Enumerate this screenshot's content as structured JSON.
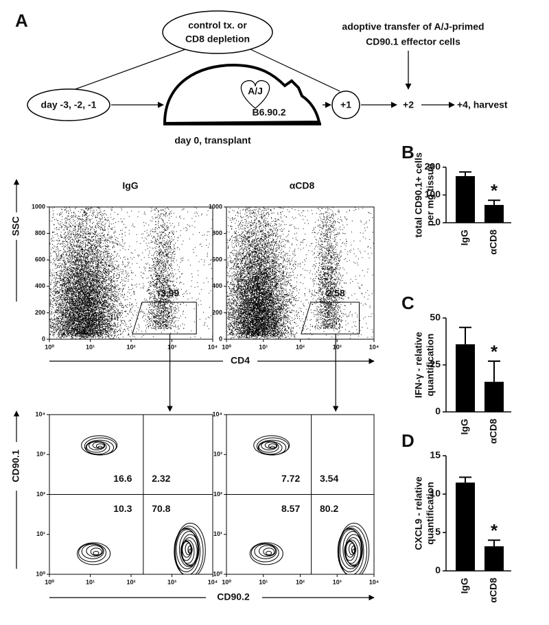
{
  "panel_a": {
    "label": "A",
    "depletion": [
      "control tx. or",
      "CD8 depletion"
    ],
    "transfer": [
      "adoptive transfer of A/J-primed",
      "CD90.1 effector cells"
    ],
    "pretreatment": "day -3, -2, -1",
    "donor": "A/J",
    "recipient": "B6.90.2",
    "transplant": "day 0, transplant",
    "steps": [
      "+1",
      "+2",
      "+4, harvest"
    ]
  },
  "flow": {
    "groups": [
      "IgG",
      "αCD8"
    ],
    "dot_plot": {
      "x_label": "CD4",
      "y_label": "SSC",
      "xlog": true,
      "xlim": [
        1,
        10000
      ],
      "xticks": [
        {
          "value": 1,
          "label": "10⁰"
        },
        {
          "value": 10,
          "label": "10¹"
        },
        {
          "value": 100,
          "label": "10²"
        },
        {
          "value": 1000,
          "label": "10³"
        },
        {
          "value": 10000,
          "label": "10⁴"
        }
      ],
      "ylim": [
        0,
        1000
      ],
      "yticks": [
        0,
        200,
        400,
        600,
        800,
        1000
      ],
      "gate_percent": [
        3.99,
        2.58
      ]
    },
    "contour_plot": {
      "x_label": "CD90.2",
      "y_label": "CD90.1",
      "xlog": true,
      "ylog": true,
      "xlim": [
        1,
        10000
      ],
      "ylim": [
        1,
        10000
      ],
      "xticks": [
        {
          "value": 1,
          "label": "10⁰"
        },
        {
          "value": 10,
          "label": "10¹"
        },
        {
          "value": 100,
          "label": "10²"
        },
        {
          "value": 1000,
          "label": "10³"
        },
        {
          "value": 10000,
          "label": "10⁴"
        }
      ],
      "yticks": [
        {
          "value": 1,
          "label": "10⁰"
        },
        {
          "value": 10,
          "label": "10¹"
        },
        {
          "value": 100,
          "label": "10²"
        },
        {
          "value": 1000,
          "label": "10³"
        },
        {
          "value": 10000,
          "label": "10⁴"
        }
      ],
      "quadrant_percent": [
        [
          16.6,
          2.32,
          10.3,
          70.8
        ],
        [
          7.72,
          3.54,
          8.57,
          80.2
        ]
      ]
    }
  },
  "chart_data": [
    {
      "type": "bar",
      "label": "B",
      "y_label": [
        "total CD90.1+ cells",
        "per mg tissue"
      ],
      "categories": [
        "IgG",
        "αCD8"
      ],
      "values": [
        168,
        64
      ],
      "errors": [
        15,
        17
      ],
      "color": "#000000",
      "ylim": [
        0,
        200
      ],
      "yticks": [
        0,
        100,
        200
      ],
      "annotation": "*"
    },
    {
      "type": "bar",
      "label": "C",
      "y_label": [
        "IFN-γ - relative",
        "quantification"
      ],
      "categories": [
        "IgG",
        "αCD8"
      ],
      "values": [
        36,
        16
      ],
      "errors": [
        9,
        11
      ],
      "color": "#000000",
      "ylim": [
        0,
        50
      ],
      "yticks": [
        0,
        25,
        50
      ],
      "annotation": "*"
    },
    {
      "type": "bar",
      "label": "D",
      "y_label": [
        "CXCL9 - relative",
        "quantification"
      ],
      "categories": [
        "IgG",
        "αCD8"
      ],
      "values": [
        11.5,
        3.2
      ],
      "errors": [
        0.7,
        0.8
      ],
      "color": "#000000",
      "ylim": [
        0,
        15
      ],
      "yticks": [
        0,
        5,
        10,
        15
      ],
      "annotation": "*"
    }
  ]
}
